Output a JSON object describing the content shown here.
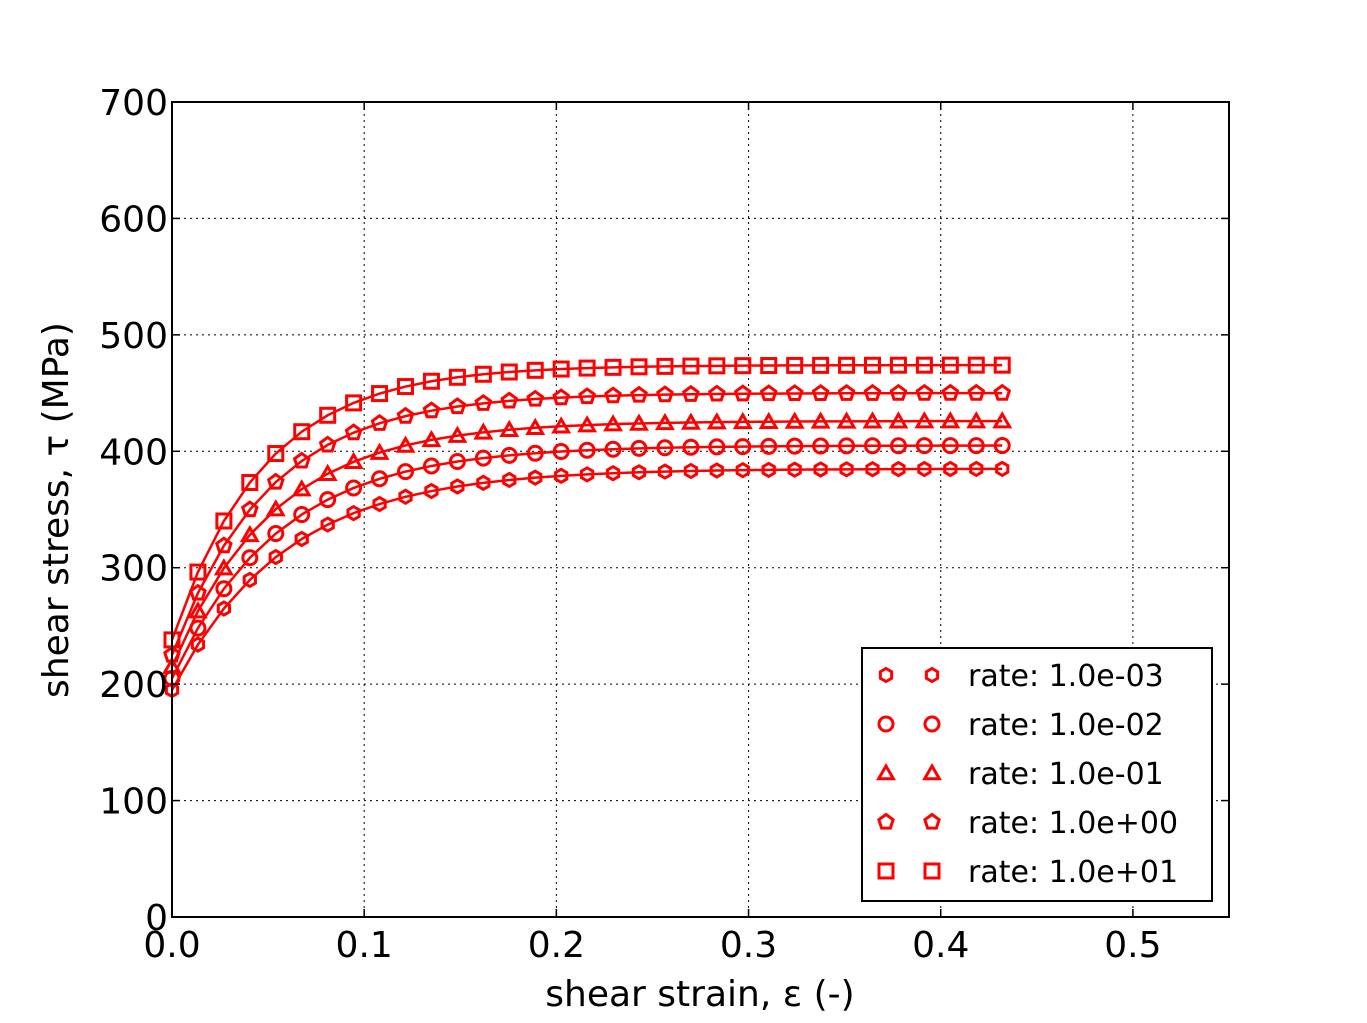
{
  "chart_data": {
    "type": "line",
    "title": "",
    "xlabel": "shear strain, ε (-)",
    "ylabel": "shear stress, τ (MPa)",
    "xlim": [
      0.0,
      0.55
    ],
    "ylim": [
      0,
      700
    ],
    "xticks": [
      "0.0",
      "0.1",
      "0.2",
      "0.3",
      "0.4",
      "0.5"
    ],
    "yticks": [
      "0",
      "100",
      "200",
      "300",
      "400",
      "500",
      "600",
      "700"
    ],
    "xtick_values": [
      0.0,
      0.1,
      0.2,
      0.3,
      0.4,
      0.5
    ],
    "ytick_values": [
      0,
      100,
      200,
      300,
      400,
      500,
      600,
      700
    ],
    "grid": true,
    "legend_position": "lower-right",
    "line_color": "#ff0000",
    "x": [
      0.0,
      0.0135,
      0.027,
      0.0405,
      0.054,
      0.0675,
      0.081,
      0.0945,
      0.108,
      0.1215,
      0.135,
      0.1485,
      0.162,
      0.1755,
      0.189,
      0.2025,
      0.216,
      0.2295,
      0.243,
      0.2565,
      0.27,
      0.2835,
      0.297,
      0.3105,
      0.324,
      0.3375,
      0.351,
      0.3645,
      0.378,
      0.3915,
      0.405,
      0.4185,
      0.432
    ],
    "series": [
      {
        "name": "rate: 1.0e-03",
        "marker": "hexagon",
        "plateau": 385,
        "start": 195,
        "k": 17
      },
      {
        "name": "rate: 1.0e-02",
        "marker": "circle",
        "plateau": 405,
        "start": 205,
        "k": 18
      },
      {
        "name": "rate: 1.0e-01",
        "marker": "triangle",
        "plateau": 426,
        "start": 215,
        "k": 19
      },
      {
        "name": "rate: 1.0e+00",
        "marker": "pentagon",
        "plateau": 450,
        "start": 225,
        "k": 20
      },
      {
        "name": "rate: 1.0e+01",
        "marker": "square",
        "plateau": 474,
        "start": 238,
        "k": 21
      }
    ]
  }
}
